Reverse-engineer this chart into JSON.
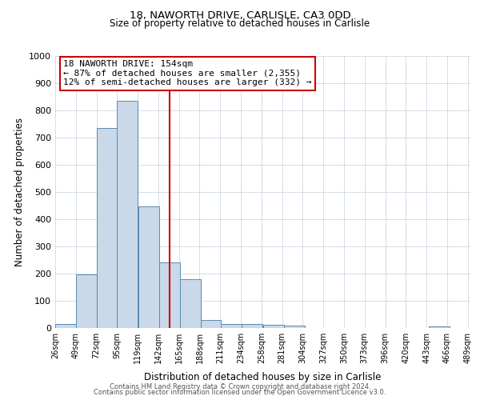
{
  "title1": "18, NAWORTH DRIVE, CARLISLE, CA3 0DD",
  "title2": "Size of property relative to detached houses in Carlisle",
  "xlabel": "Distribution of detached houses by size in Carlisle",
  "ylabel": "Number of detached properties",
  "bar_left_edges": [
    26,
    49,
    72,
    95,
    119,
    142,
    165,
    188,
    211,
    234,
    258,
    281,
    304,
    327,
    350,
    373,
    396,
    420,
    443,
    466
  ],
  "bar_heights": [
    15,
    197,
    735,
    835,
    448,
    240,
    178,
    30,
    15,
    15,
    13,
    10,
    0,
    0,
    0,
    0,
    0,
    0,
    5,
    0
  ],
  "bin_width": 23,
  "bar_facecolor": "#c9d9ea",
  "bar_edgecolor": "#5a8ab0",
  "property_line_x": 154,
  "property_line_color": "#cc0000",
  "ylim": [
    0,
    1000
  ],
  "yticks": [
    0,
    100,
    200,
    300,
    400,
    500,
    600,
    700,
    800,
    900,
    1000
  ],
  "xtick_labels": [
    "26sqm",
    "49sqm",
    "72sqm",
    "95sqm",
    "119sqm",
    "142sqm",
    "165sqm",
    "188sqm",
    "211sqm",
    "234sqm",
    "258sqm",
    "281sqm",
    "304sqm",
    "327sqm",
    "350sqm",
    "373sqm",
    "396sqm",
    "420sqm",
    "443sqm",
    "466sqm",
    "489sqm"
  ],
  "annotation_box_title": "18 NAWORTH DRIVE: 154sqm",
  "annotation_line1": "← 87% of detached houses are smaller (2,355)",
  "annotation_line2": "12% of semi-detached houses are larger (332) →",
  "annotation_box_edgecolor": "#cc0000",
  "footnote1": "Contains HM Land Registry data © Crown copyright and database right 2024.",
  "footnote2": "Contains public sector information licensed under the Open Government Licence v3.0.",
  "bg_color": "#ffffff",
  "grid_color": "#cdd8e3"
}
